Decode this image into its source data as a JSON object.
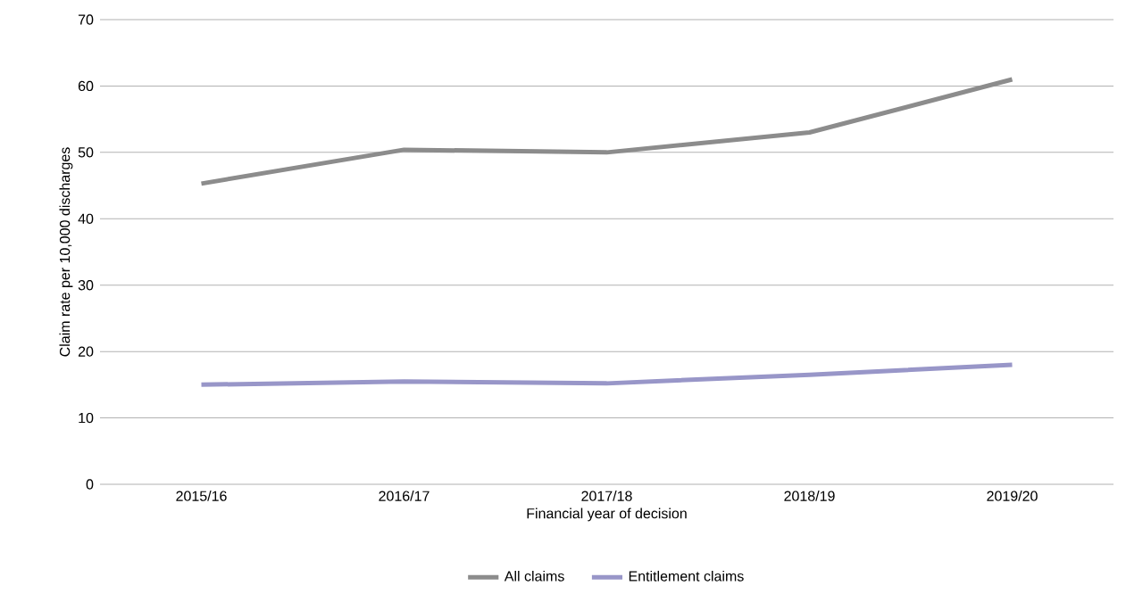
{
  "chart_data": {
    "type": "line",
    "xlabel": "Financial year of decision",
    "ylabel": "Claim rate per 10,000 discharges",
    "categories": [
      "2015/16",
      "2016/17",
      "2017/18",
      "2018/19",
      "2019/20"
    ],
    "series": [
      {
        "name": "All claims",
        "color": "#8c8c8c",
        "values": [
          45.3,
          50.4,
          50.0,
          53.0,
          61.0
        ]
      },
      {
        "name": "Entitlement claims",
        "color": "#9896c8",
        "values": [
          15.0,
          15.5,
          15.2,
          16.5,
          18.0
        ]
      }
    ],
    "ylim": [
      0,
      70
    ],
    "yticks": [
      0,
      10,
      20,
      30,
      40,
      50,
      60,
      70
    ],
    "grid": "y",
    "legend": "bottom",
    "marker": "none",
    "line_style": "solid"
  }
}
